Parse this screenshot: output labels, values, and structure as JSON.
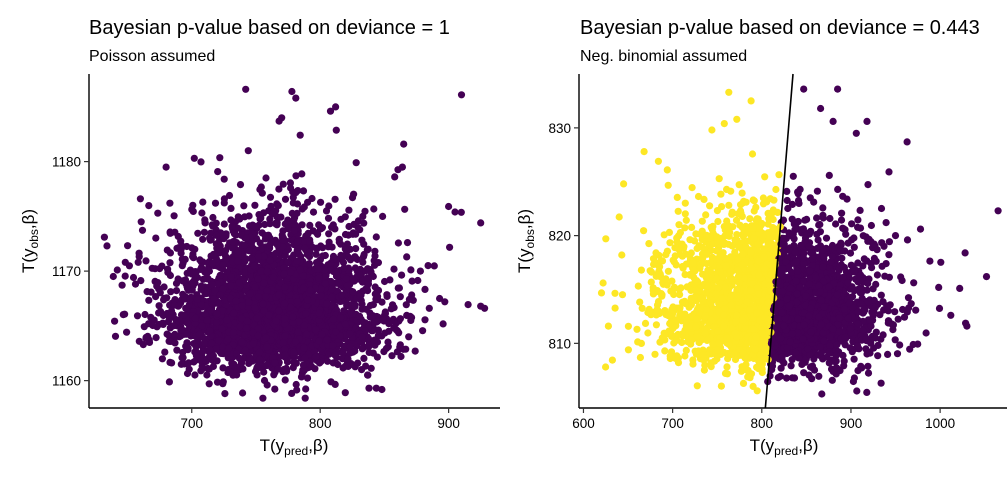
{
  "chart_data": [
    {
      "type": "scatter",
      "title": "Bayesian p-value based on deviance = 1",
      "subtitle": "Poisson assumed",
      "xlabel": {
        "base": "T(y",
        "sub": "pred",
        "tail": ",β)"
      },
      "ylabel": {
        "base": "T(y",
        "sub": "obs",
        "tail": ",β)"
      },
      "xlim": [
        620,
        940
      ],
      "ylim": [
        1157.5,
        1188
      ],
      "xticks": [
        "700",
        "800",
        "900"
      ],
      "xtick_values": [
        700,
        800,
        900
      ],
      "yticks": [
        "1160",
        "1170",
        "1180"
      ],
      "ytick_values": [
        1160,
        1170,
        1180
      ],
      "grid": false,
      "point_color": "#440154",
      "cloud": {
        "n": 3400,
        "x_mean": 765,
        "x_sd": 40,
        "y_mean": 1166,
        "y_sd": 4.3,
        "y_min": 1158.3
      },
      "outliers": [
        [
          742,
          1186.6
        ],
        [
          778,
          1186.4
        ],
        [
          781,
          1185.8
        ],
        [
          812,
          1185.0
        ],
        [
          808,
          1184.6
        ],
        [
          910,
          1186.1
        ],
        [
          768,
          1183.7
        ],
        [
          770,
          1184.0
        ],
        [
          680,
          1179.5
        ],
        [
          925,
          1174.4
        ],
        [
          632,
          1173.1
        ],
        [
          634,
          1172.3
        ],
        [
          925,
          1166.8
        ],
        [
          928,
          1166.6
        ],
        [
          642,
          1170.1
        ],
        [
          900,
          1175.9
        ],
        [
          905,
          1175.4
        ],
        [
          878,
          1170.0
        ],
        [
          884,
          1170.5
        ],
        [
          893,
          1167.5
        ],
        [
          897,
          1167.2
        ],
        [
          865,
          1181.6
        ],
        [
          858,
          1178.6
        ],
        [
          868,
          1172.6
        ],
        [
          660,
          1176.6
        ],
        [
          702,
          1180.3
        ],
        [
          744,
          1181.0
        ],
        [
          828,
          1179.9
        ],
        [
          864,
          1179.5
        ],
        [
          874,
          1162.7
        ]
      ]
    },
    {
      "type": "scatter",
      "title": "Bayesian p-value based on deviance = 0.443",
      "subtitle": "Neg. binomial assumed",
      "xlabel": {
        "base": "T(y",
        "sub": "pred",
        "tail": ",β)"
      },
      "ylabel": {
        "base": "T(y",
        "sub": "obs",
        "tail": ",β)"
      },
      "xlim": [
        595,
        1075
      ],
      "ylim": [
        804,
        835
      ],
      "xticks": [
        "600",
        "700",
        "800",
        "900",
        "1000"
      ],
      "xtick_values": [
        600,
        700,
        800,
        900,
        1000
      ],
      "yticks": [
        "810",
        "820",
        "830"
      ],
      "ytick_values": [
        810,
        820,
        830
      ],
      "grid": false,
      "colors": {
        "above_line": "#fde725",
        "below_line": "#440154",
        "line": "#000000"
      },
      "identity_line": {
        "x0": 804,
        "y0": 804,
        "x1": 835,
        "y1": 835
      },
      "cloud": {
        "n": 3400,
        "x_mean": 810,
        "x_sd": 58,
        "y_mean": 813,
        "y_sd": 4.4,
        "y_min": 805.2
      },
      "outliers": [
        [
          763,
          833.3
        ],
        [
          788,
          832.5
        ],
        [
          758,
          830.4
        ],
        [
          772,
          830.8
        ],
        [
          744,
          829.8
        ],
        [
          668,
          827.8
        ],
        [
          684,
          826.9
        ],
        [
          694,
          826.1
        ],
        [
          645,
          824.8
        ],
        [
          625,
          819.7
        ],
        [
          643,
          818.2
        ],
        [
          622,
          815.6
        ],
        [
          628,
          811.6
        ],
        [
          660,
          811.3
        ],
        [
          665,
          810.0
        ],
        [
          847,
          833.6
        ],
        [
          885,
          833.6
        ],
        [
          866,
          831.8
        ],
        [
          918,
          830.6
        ],
        [
          963,
          828.7
        ],
        [
          1065,
          822.3
        ],
        [
          1052,
          816.2
        ],
        [
          1028,
          818.4
        ],
        [
          1022,
          815.1
        ],
        [
          1012,
          812.6
        ],
        [
          950,
          820.0
        ],
        [
          978,
          820.6
        ],
        [
          906,
          829.5
        ],
        [
          880,
          830.6
        ],
        [
          1030,
          811.6
        ]
      ]
    }
  ]
}
